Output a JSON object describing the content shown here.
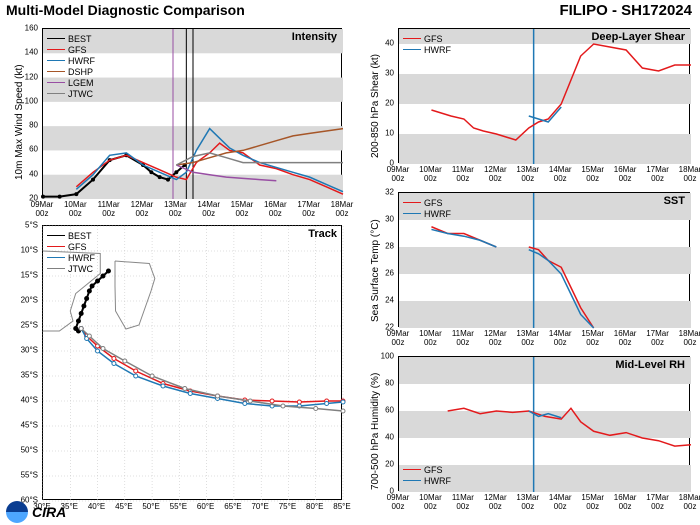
{
  "title": "Multi-Model Diagnostic Comparison",
  "storm_id": "FILIPO - SH172024",
  "colors": {
    "BEST": "#000000",
    "GFS": "#e31a1c",
    "HWRF": "#1f78b4",
    "DSHP": "#a65628",
    "LGEM": "#984ea3",
    "JTWC": "#808080",
    "band": "#d9d9d9",
    "grid": "#bfbfbf",
    "nowline": "#1f78b4"
  },
  "dates": [
    "09Mar 00z",
    "10Mar 00z",
    "11Mar 00z",
    "12Mar 00z",
    "13Mar 00z",
    "14Mar 00z",
    "15Mar 00z",
    "16Mar 00z",
    "17Mar 00z",
    "18Mar 00z"
  ],
  "intensity": {
    "title": "Intensity",
    "ylabel": "10m Max Wind Speed (kt)",
    "ylim": [
      20,
      160
    ],
    "ytick_step": 20,
    "bands": [
      [
        20,
        40
      ],
      [
        60,
        80
      ],
      [
        100,
        120
      ],
      [
        140,
        160
      ]
    ],
    "legend": [
      "BEST",
      "GFS",
      "HWRF",
      "DSHP",
      "LGEM",
      "JTWC"
    ],
    "BEST": {
      "x": [
        0,
        0.5,
        1,
        1.5,
        2,
        2.5,
        3,
        3.25,
        3.5,
        3.75,
        4,
        4.25
      ],
      "y": [
        22,
        22,
        24,
        36,
        52,
        56,
        48,
        42,
        38,
        36,
        42,
        48
      ]
    },
    "GFS": {
      "x": [
        1,
        1.5,
        2,
        2.5,
        3,
        3.5,
        4,
        4.3,
        4.6,
        5,
        5.3,
        5.6,
        6,
        6.5,
        7,
        7.5,
        8,
        8.5,
        9
      ],
      "y": [
        30,
        42,
        52,
        56,
        50,
        44,
        38,
        36,
        50,
        58,
        66,
        60,
        58,
        48,
        45,
        40,
        36,
        30,
        24
      ]
    },
    "HWRF": {
      "x": [
        1,
        1.5,
        2,
        2.5,
        3,
        3.5,
        4,
        4.3,
        4.6,
        5,
        5.3,
        5.6,
        6,
        6.5,
        7,
        7.5,
        8,
        8.5,
        9
      ],
      "y": [
        28,
        40,
        56,
        58,
        48,
        42,
        36,
        42,
        60,
        78,
        70,
        62,
        56,
        50,
        46,
        42,
        38,
        32,
        26
      ]
    },
    "DSHP": {
      "x": [
        4,
        4.5,
        5,
        5.5,
        6,
        6.5,
        7,
        7.5,
        8,
        8.5,
        9
      ],
      "y": [
        48,
        50,
        54,
        58,
        60,
        64,
        68,
        72,
        74,
        76,
        78
      ]
    },
    "LGEM": {
      "x": [
        4,
        4.5,
        5,
        5.5,
        6,
        6.5,
        7
      ],
      "y": [
        48,
        42,
        40,
        38,
        37,
        36,
        35
      ]
    },
    "JTWC": {
      "x": [
        4,
        4.5,
        5,
        5.5,
        6,
        6.5,
        7,
        7.5,
        8,
        8.5,
        9
      ],
      "y": [
        48,
        55,
        58,
        54,
        50,
        50,
        50,
        50,
        50,
        50,
        50
      ]
    },
    "vlines": [
      3.9,
      4.3,
      4.5
    ],
    "vline_purple": 3.9
  },
  "track": {
    "title": "Track",
    "xlim": [
      30,
      85
    ],
    "ylim": [
      60,
      5
    ],
    "xtick_step": 5,
    "ytick_step": 5,
    "legend": [
      "BEST",
      "GFS",
      "HWRF",
      "JTWC"
    ],
    "land_madagascar": [
      [
        43.2,
        12.0
      ],
      [
        49.5,
        12.5
      ],
      [
        50.5,
        15.5
      ],
      [
        49.8,
        18
      ],
      [
        47.6,
        24.8
      ],
      [
        45.2,
        25.6
      ],
      [
        43.3,
        22
      ],
      [
        43.2,
        17
      ],
      [
        43.2,
        12.0
      ]
    ],
    "land_mozambique": [
      [
        30,
        10
      ],
      [
        40.5,
        10.5
      ],
      [
        40.5,
        14.5
      ],
      [
        36,
        18.5
      ],
      [
        35,
        22
      ],
      [
        35.5,
        24
      ],
      [
        33,
        26
      ],
      [
        30,
        26
      ]
    ],
    "BEST": {
      "x": [
        42,
        41,
        40,
        39,
        38.5,
        38,
        37.5,
        37,
        36.5,
        36,
        36.5,
        37
      ],
      "y": [
        14,
        15,
        16,
        17,
        18,
        19.5,
        21,
        22.5,
        24,
        25.5,
        26,
        25.5
      ]
    },
    "GFS": {
      "x": [
        37,
        38,
        40,
        43,
        47,
        52,
        57,
        62,
        67,
        72,
        77,
        82,
        85
      ],
      "y": [
        25.5,
        27,
        29,
        31.5,
        34,
        36.5,
        38,
        39,
        39.8,
        40,
        40.2,
        40,
        40
      ]
    },
    "HWRF": {
      "x": [
        37,
        38,
        40,
        43,
        47,
        52,
        57,
        62,
        67,
        72,
        77,
        82,
        85
      ],
      "y": [
        25.5,
        27.5,
        30,
        32.5,
        35,
        37,
        38.5,
        39.5,
        40.5,
        41,
        41,
        40.5,
        40.2
      ]
    },
    "JTWC": {
      "x": [
        37,
        38.5,
        41,
        45,
        50,
        56,
        62,
        68,
        74,
        80,
        85
      ],
      "y": [
        25.5,
        27,
        29.5,
        32,
        35,
        37.5,
        39,
        40,
        41,
        41.5,
        42
      ]
    }
  },
  "shear": {
    "title": "Deep-Layer Shear",
    "ylabel": "200-850 hPa Shear (kt)",
    "ylim": [
      0,
      45
    ],
    "ytick_step": 10,
    "bands": [
      [
        0,
        10
      ],
      [
        20,
        30
      ],
      [
        40,
        45
      ]
    ],
    "legend": [
      "GFS",
      "HWRF"
    ],
    "GFS": {
      "x": [
        1,
        1.3,
        1.6,
        2,
        2.3,
        2.6,
        3,
        3.3,
        3.6,
        4,
        4.3,
        4.6,
        5,
        5.3,
        5.6,
        6,
        6.5,
        7,
        7.5,
        8,
        8.5,
        9
      ],
      "y": [
        18,
        17,
        16,
        15,
        12,
        11,
        10,
        9,
        8,
        12,
        14,
        15,
        20,
        28,
        36,
        40,
        39,
        38,
        32,
        31,
        33,
        33
      ]
    },
    "HWRF": {
      "x": [
        4,
        4.3,
        4.6,
        5
      ],
      "y": [
        16,
        15,
        14,
        19
      ]
    },
    "nowline_x": 4.15
  },
  "sst": {
    "title": "SST",
    "ylabel": "Sea Surface Temp (°C)",
    "ylim": [
      22,
      32
    ],
    "ytick_step": 2,
    "bands": [
      [
        22,
        24
      ],
      [
        26,
        28
      ],
      [
        30,
        32
      ]
    ],
    "legend": [
      "GFS",
      "HWRF"
    ],
    "GFS_a": {
      "x": [
        1,
        1.5,
        2,
        2.5,
        3
      ],
      "y": [
        29.5,
        29,
        29,
        28.5,
        28
      ]
    },
    "GFS_b": {
      "x": [
        4,
        4.3,
        4.6,
        5,
        5.3,
        5.6,
        6
      ],
      "y": [
        28,
        27.8,
        27,
        26.5,
        25,
        23.5,
        22
      ]
    },
    "HWRF_a": {
      "x": [
        1,
        1.5,
        2,
        2.5,
        3
      ],
      "y": [
        29.3,
        29,
        28.8,
        28.5,
        28
      ]
    },
    "HWRF_b": {
      "x": [
        4,
        4.3,
        4.6,
        5,
        5.3,
        5.6,
        6
      ],
      "y": [
        27.8,
        27.5,
        27,
        26,
        24.5,
        23,
        22
      ]
    },
    "nowline_x": 4.15
  },
  "rh": {
    "title": "Mid-Level RH",
    "ylabel": "700-500 hPa Humidity (%)",
    "ylim": [
      0,
      100
    ],
    "ytick_step": 20,
    "bands": [
      [
        0,
        20
      ],
      [
        40,
        60
      ],
      [
        80,
        100
      ]
    ],
    "legend": [
      "GFS",
      "HWRF"
    ],
    "GFS": {
      "x": [
        1.5,
        2,
        2.5,
        3,
        3.5,
        4,
        4.5,
        5,
        5.3,
        5.6,
        6,
        6.5,
        7,
        7.5,
        8,
        8.5,
        9
      ],
      "y": [
        60,
        62,
        58,
        60,
        59,
        60,
        56,
        54,
        62,
        52,
        45,
        42,
        44,
        40,
        38,
        34,
        35
      ]
    },
    "HWRF": {
      "x": [
        4,
        4.3,
        4.6,
        5
      ],
      "y": [
        60,
        56,
        58,
        55
      ]
    },
    "nowline_x": 4.15
  },
  "footer": {
    "org": "NOAA",
    "lab": "CIRA"
  }
}
